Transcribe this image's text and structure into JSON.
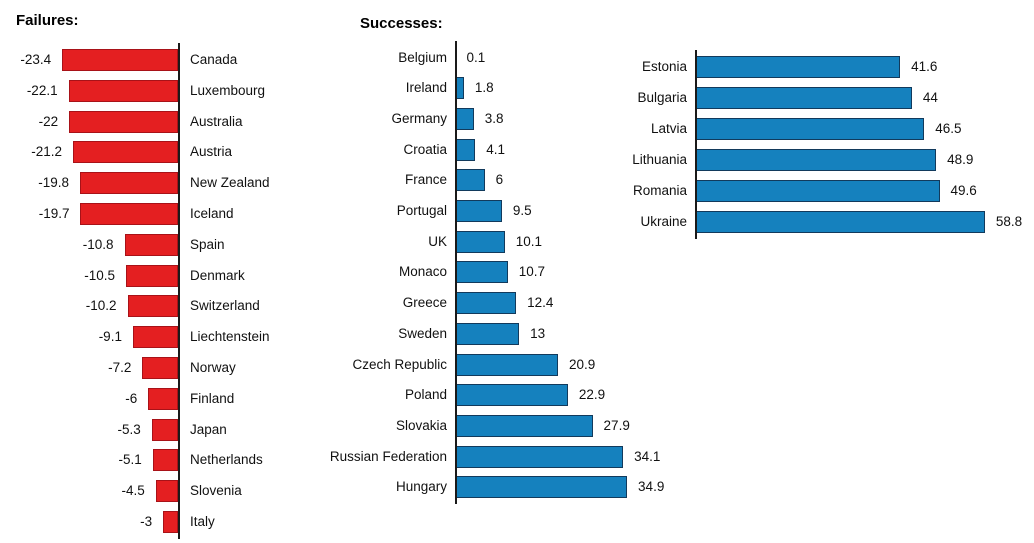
{
  "figure": {
    "background": "#ffffff",
    "axis_color": "#1a1a1a",
    "text_color": "#111111"
  },
  "chart_data": [
    {
      "type": "bar",
      "title": "Failures:",
      "orientation": "horizontal",
      "bar_direction": "left",
      "bar_color": "#e41f21",
      "bar_border_color": "#a81218",
      "value_labels": "outside-left",
      "grid": false,
      "categories": [
        "Canada",
        "Luxembourg",
        "Australia",
        "Austria",
        "New Zealand",
        "Iceland",
        "Spain",
        "Denmark",
        "Switzerland",
        "Liechtenstein",
        "Norway",
        "Finland",
        "Japan",
        "Netherlands",
        "Slovenia",
        "Italy"
      ],
      "values": [
        -23.4,
        -22.1,
        -22,
        -21.2,
        -19.8,
        -19.7,
        -10.8,
        -10.5,
        -10.2,
        -9.1,
        -7.2,
        -6,
        -5.3,
        -5.1,
        -4.5,
        -3
      ]
    },
    {
      "type": "bar",
      "title": "Successes:",
      "orientation": "horizontal",
      "bar_direction": "right",
      "bar_color": "#1581be",
      "bar_border_color": "#123a5c",
      "value_labels": "outside-right",
      "grid": false,
      "categories": [
        "Belgium",
        "Ireland",
        "Germany",
        "Croatia",
        "France",
        "Portugal",
        "UK",
        "Monaco",
        "Greece",
        "Sweden",
        "Czech Republic",
        "Poland",
        "Slovakia",
        "Russian Federation",
        "Hungary"
      ],
      "values": [
        0.1,
        1.8,
        3.8,
        4.1,
        6,
        9.5,
        10.1,
        10.7,
        12.4,
        13,
        20.9,
        22.9,
        27.9,
        34.1,
        34.9
      ]
    },
    {
      "type": "bar",
      "title": "",
      "orientation": "horizontal",
      "bar_direction": "right",
      "bar_color": "#1581be",
      "bar_border_color": "#123a5c",
      "value_labels": "outside-right",
      "grid": false,
      "categories": [
        "Estonia",
        "Bulgaria",
        "Latvia",
        "Lithuania",
        "Romania",
        "Ukraine"
      ],
      "values": [
        41.6,
        44,
        46.5,
        48.9,
        49.6,
        58.8
      ]
    }
  ]
}
